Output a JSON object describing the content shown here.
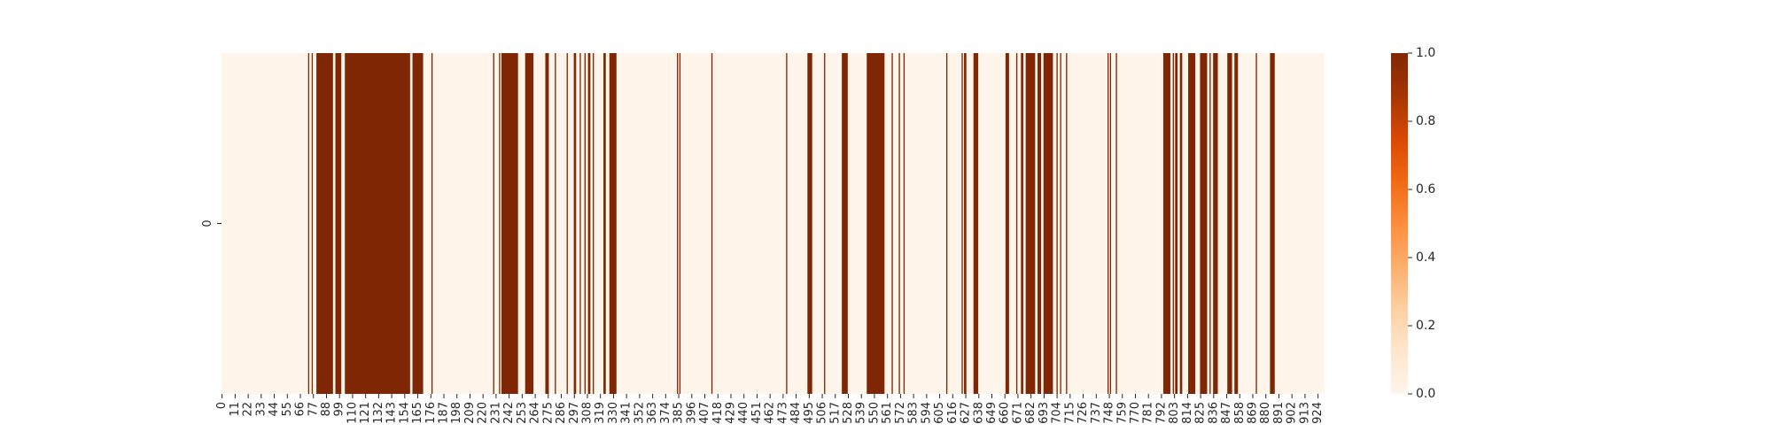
{
  "chart_data": {
    "type": "heatmap",
    "title": "",
    "xlabel": "",
    "ylabel": "",
    "n_columns": 930,
    "rows": [
      "0"
    ],
    "x_tick_step": 11,
    "x_tick_labels": [
      "0",
      "11",
      "22",
      "33",
      "44",
      "55",
      "66",
      "77",
      "88",
      "99",
      "110",
      "121",
      "132",
      "143",
      "154",
      "165",
      "176",
      "187",
      "198",
      "209",
      "220",
      "231",
      "242",
      "253",
      "264",
      "275",
      "286",
      "297",
      "308",
      "319",
      "330",
      "341",
      "352",
      "363",
      "374",
      "385",
      "396",
      "407",
      "418",
      "429",
      "440",
      "451",
      "462",
      "473",
      "484",
      "495",
      "506",
      "517",
      "528",
      "539",
      "550",
      "561",
      "572",
      "583",
      "594",
      "605",
      "616",
      "627",
      "638",
      "649",
      "660",
      "671",
      "682",
      "693",
      "704",
      "715",
      "726",
      "737",
      "748",
      "759",
      "770",
      "781",
      "792",
      "803",
      "814",
      "825",
      "836",
      "847",
      "858",
      "869",
      "880",
      "891",
      "902",
      "913",
      "924"
    ],
    "value_range": [
      0,
      1
    ],
    "colormap": "Oranges",
    "color_low": "#fff5eb",
    "color_high": "#7f2704",
    "colorbar_ticks": [
      "0.0",
      "0.2",
      "0.4",
      "0.6",
      "0.8",
      "1.0"
    ],
    "high_ranges": [
      [
        73,
        74
      ],
      [
        76,
        77
      ],
      [
        80,
        94
      ],
      [
        96,
        101
      ],
      [
        104,
        159
      ],
      [
        161,
        170
      ],
      [
        177,
        178
      ],
      [
        229,
        230
      ],
      [
        234,
        235
      ],
      [
        236,
        250
      ],
      [
        256,
        263
      ],
      [
        273,
        276
      ],
      [
        281,
        282
      ],
      [
        291,
        292
      ],
      [
        297,
        299
      ],
      [
        302,
        303
      ],
      [
        306,
        307
      ],
      [
        309,
        311
      ],
      [
        313,
        314
      ],
      [
        322,
        324
      ],
      [
        327,
        333
      ],
      [
        384,
        385
      ],
      [
        386,
        387
      ],
      [
        413,
        414
      ],
      [
        476,
        477
      ],
      [
        494,
        498
      ],
      [
        508,
        509
      ],
      [
        523,
        528
      ],
      [
        544,
        559
      ],
      [
        565,
        566
      ],
      [
        571,
        572
      ],
      [
        575,
        576
      ],
      [
        611,
        612
      ],
      [
        624,
        625
      ],
      [
        626,
        628
      ],
      [
        634,
        638
      ],
      [
        661,
        664
      ],
      [
        670,
        671
      ],
      [
        674,
        676
      ],
      [
        678,
        686
      ],
      [
        688,
        691
      ],
      [
        693,
        701
      ],
      [
        704,
        705
      ],
      [
        707,
        708
      ],
      [
        712,
        713
      ],
      [
        747,
        748
      ],
      [
        749,
        750
      ],
      [
        754,
        755
      ],
      [
        794,
        800
      ],
      [
        802,
        803
      ],
      [
        804,
        806
      ],
      [
        808,
        810
      ],
      [
        815,
        821
      ],
      [
        825,
        831
      ],
      [
        833,
        834
      ],
      [
        836,
        840
      ],
      [
        848,
        852
      ],
      [
        854,
        857
      ],
      [
        872,
        873
      ],
      [
        884,
        888
      ]
    ]
  }
}
